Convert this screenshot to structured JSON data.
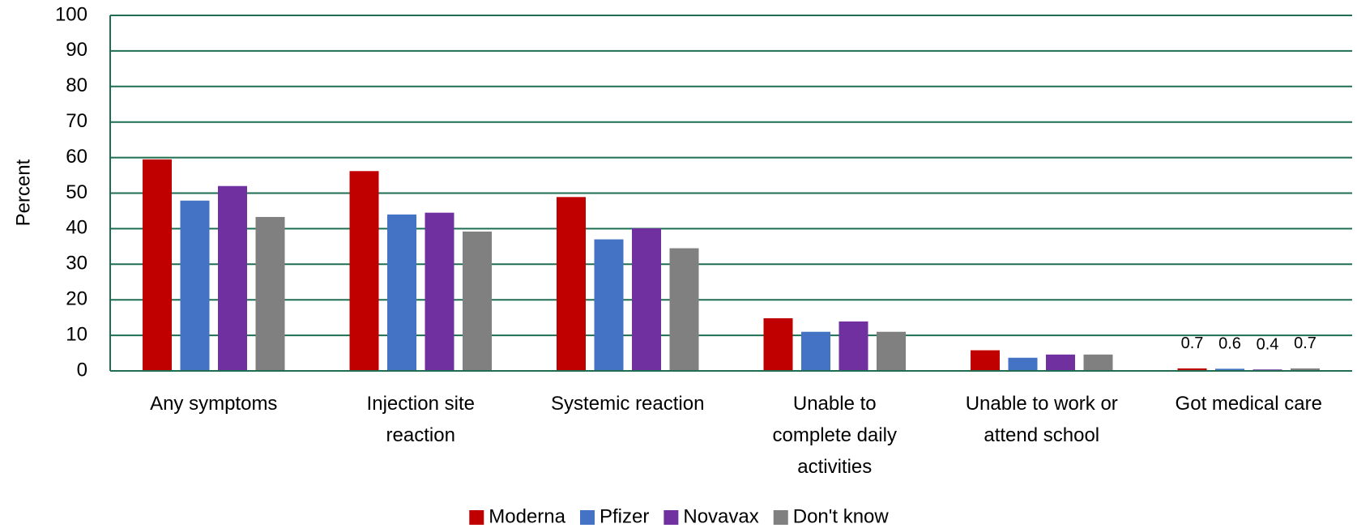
{
  "chart_data": {
    "type": "bar",
    "y_label": "Percent",
    "categories": [
      "Any symptoms",
      "Injection site reaction",
      "Systemic reaction",
      "Unable to complete daily activities",
      "Unable to work or attend school",
      "Got medical care"
    ],
    "series": [
      {
        "name": "Moderna",
        "color": "#c00000",
        "values": [
          59.5,
          56.2,
          48.9,
          14.8,
          5.8,
          0.7
        ],
        "value_labels": [
          null,
          null,
          null,
          null,
          null,
          "0.7"
        ]
      },
      {
        "name": "Pfizer",
        "color": "#4472c4",
        "values": [
          47.9,
          44.0,
          37.0,
          11.0,
          3.7,
          0.6
        ],
        "value_labels": [
          null,
          null,
          null,
          null,
          null,
          "0.6"
        ]
      },
      {
        "name": "Novavax",
        "color": "#7030a0",
        "values": [
          52.0,
          44.5,
          40.1,
          13.9,
          4.6,
          0.4
        ],
        "value_labels": [
          null,
          null,
          null,
          null,
          null,
          "0.4"
        ]
      },
      {
        "name": "Don't know",
        "color": "#808080",
        "values": [
          43.3,
          39.2,
          34.5,
          11.0,
          4.6,
          0.7
        ],
        "value_labels": [
          null,
          null,
          null,
          null,
          null,
          "0.7"
        ]
      }
    ],
    "ylim": [
      0,
      100
    ],
    "yticks": [
      0,
      10,
      20,
      30,
      40,
      50,
      60,
      70,
      80,
      90,
      100
    ],
    "grid": true,
    "legend": "bottom"
  }
}
